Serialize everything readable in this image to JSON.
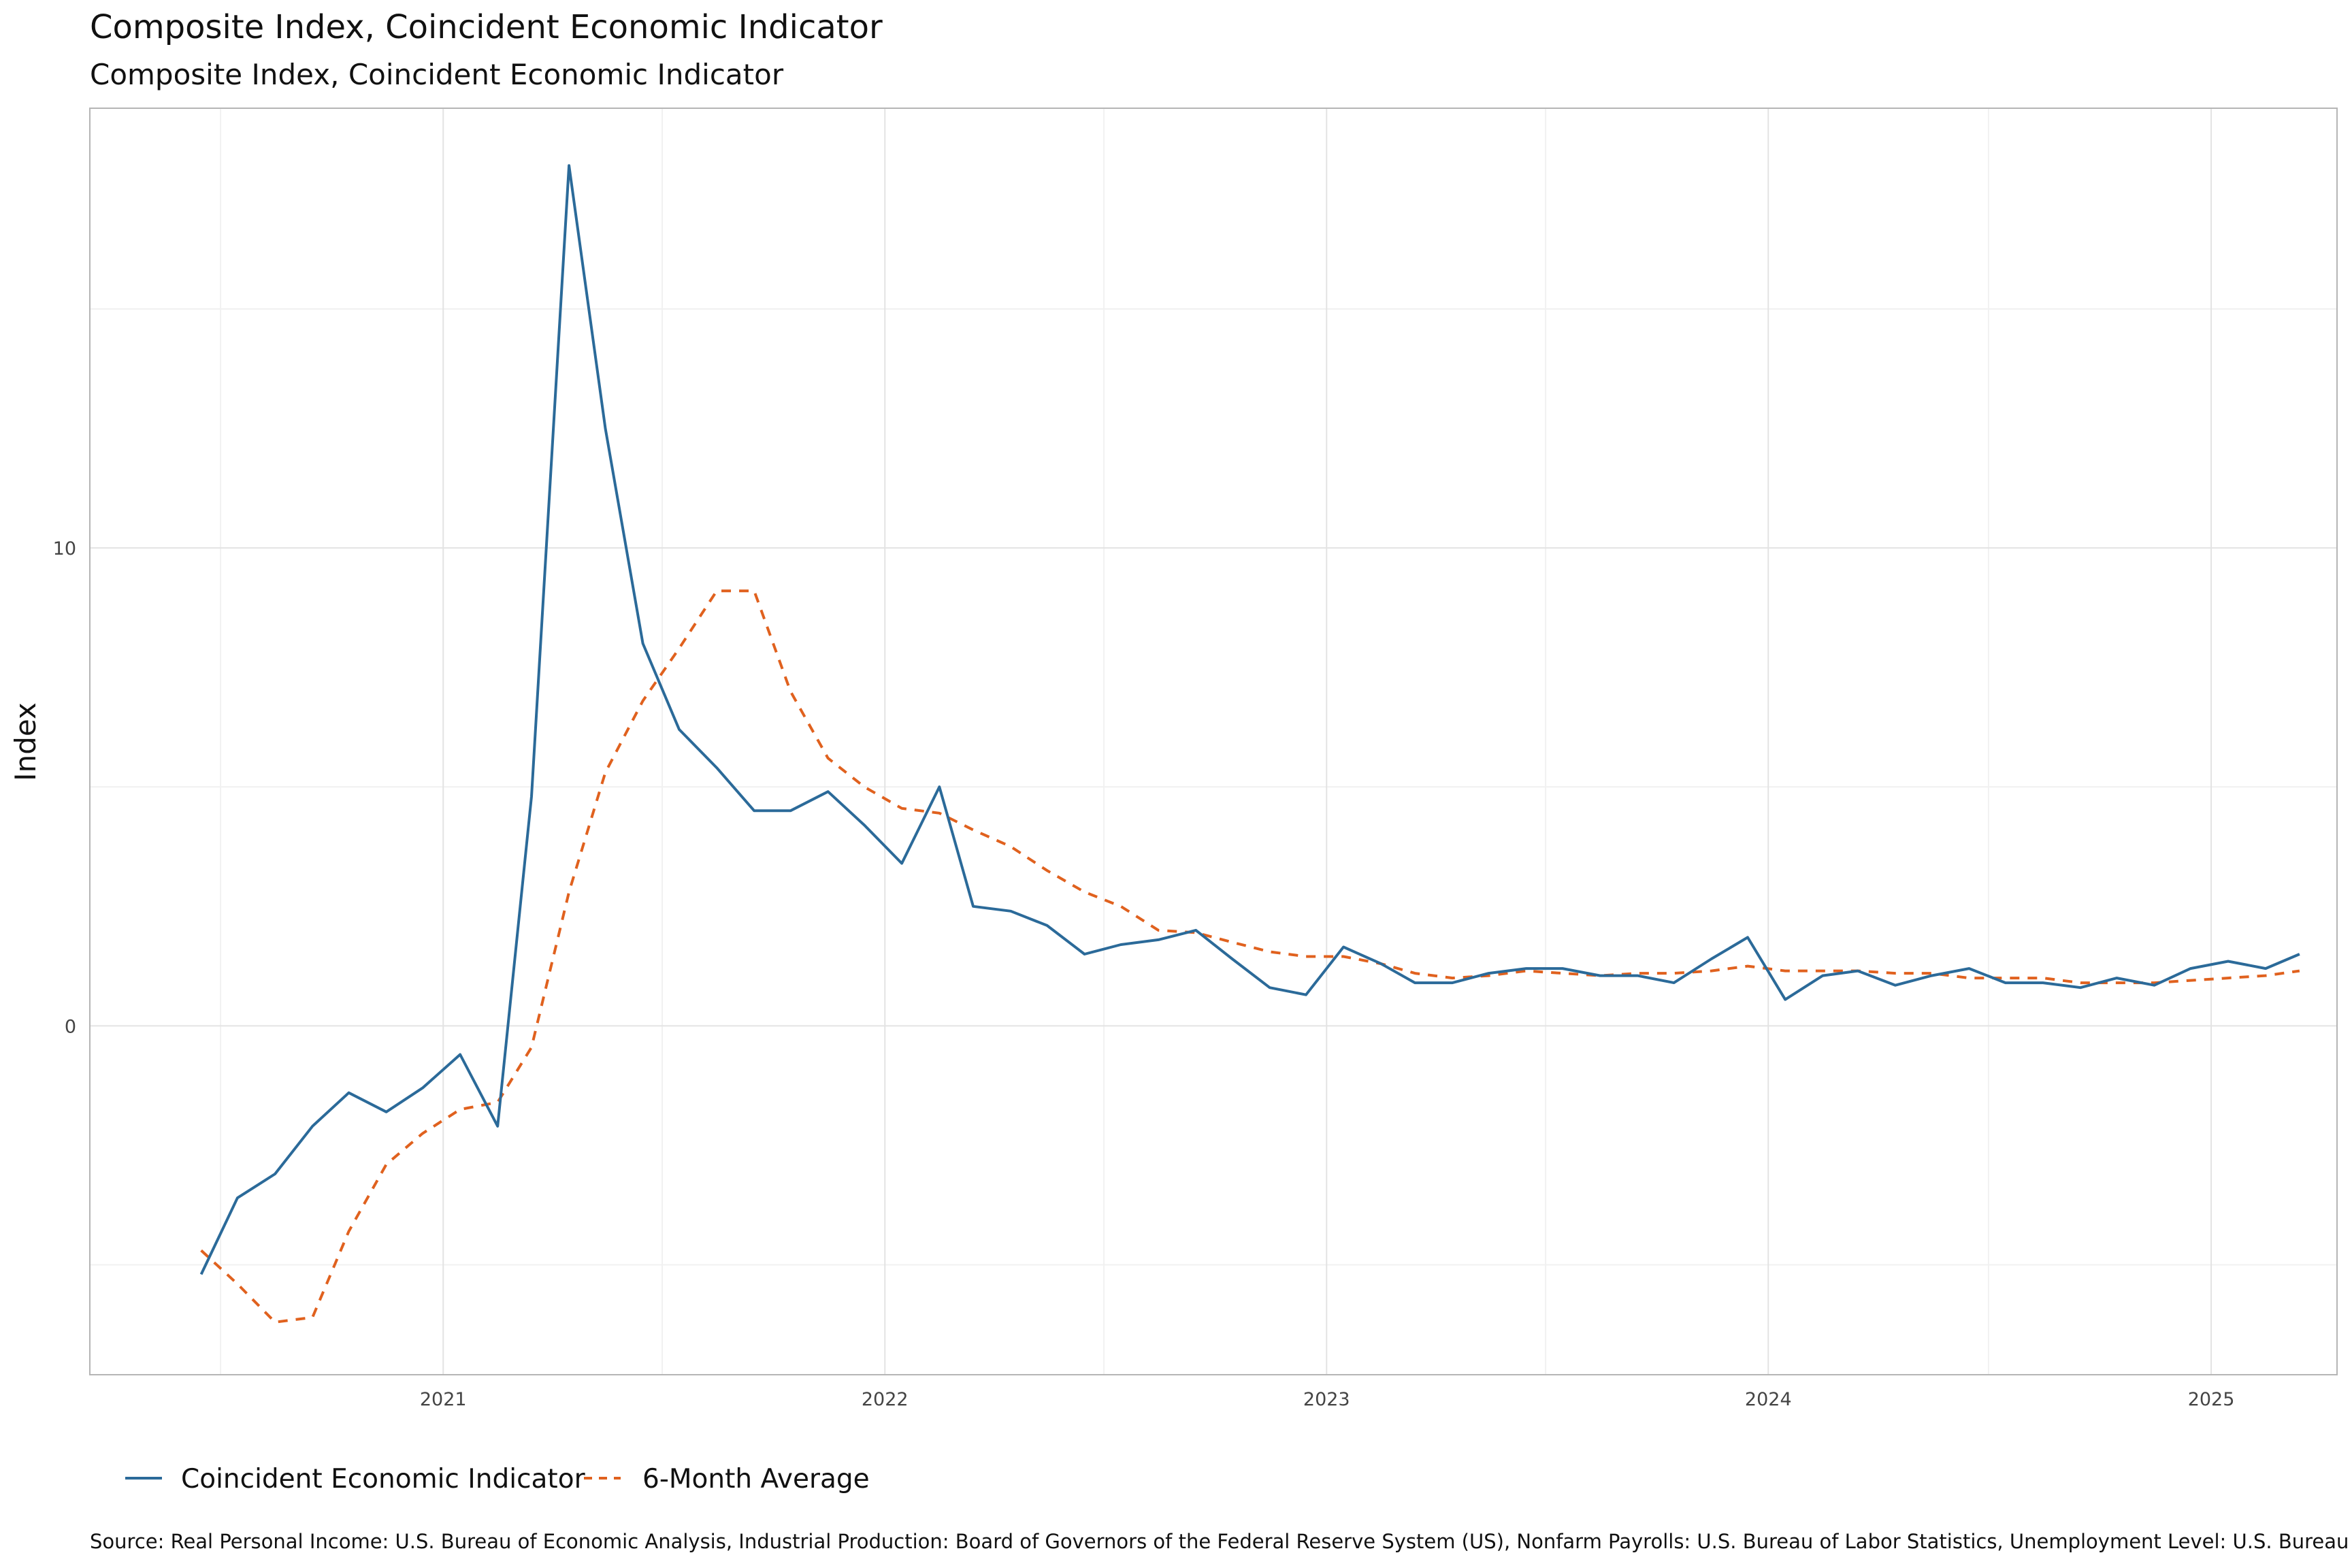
{
  "chart_data": {
    "type": "line",
    "title": "Composite Index, Coincident Economic Indicator",
    "subtitle": "Composite Index, Coincident Economic Indicator",
    "xlabel": "",
    "ylabel": "Index",
    "xlim": [
      "2020-03-15",
      "2025-04-15"
    ],
    "ylim": [
      -7.3,
      19.2
    ],
    "x_ticks": [
      "2021",
      "2022",
      "2023",
      "2024",
      "2025"
    ],
    "y_ticks": [
      "0",
      "10"
    ],
    "grid": true,
    "legend_position": "bottom-left",
    "x": [
      "2020-06",
      "2020-07",
      "2020-08",
      "2020-09",
      "2020-10",
      "2020-11",
      "2020-12",
      "2021-01",
      "2021-02",
      "2021-03",
      "2021-04",
      "2021-05",
      "2021-06",
      "2021-07",
      "2021-08",
      "2021-09",
      "2021-10",
      "2021-11",
      "2021-12",
      "2022-01",
      "2022-02",
      "2022-03",
      "2022-04",
      "2022-05",
      "2022-06",
      "2022-07",
      "2022-08",
      "2022-09",
      "2022-10",
      "2022-11",
      "2022-12",
      "2023-01",
      "2023-02",
      "2023-03",
      "2023-04",
      "2023-05",
      "2023-06",
      "2023-07",
      "2023-08",
      "2023-09",
      "2023-10",
      "2023-11",
      "2023-12",
      "2024-01",
      "2024-02",
      "2024-03",
      "2024-04",
      "2024-05",
      "2024-06",
      "2024-07",
      "2024-08",
      "2024-09",
      "2024-10",
      "2024-11",
      "2024-12",
      "2025-01",
      "2025-02",
      "2025-03"
    ],
    "series": [
      {
        "name": "Coincident Economic Indicator",
        "color": "#2b6a99",
        "style": "solid",
        "values": [
          -5.2,
          -3.6,
          -3.1,
          -2.1,
          -1.4,
          -1.8,
          -1.3,
          -0.6,
          -2.1,
          4.8,
          18.0,
          12.5,
          8.0,
          6.2,
          5.4,
          4.5,
          4.5,
          4.9,
          4.2,
          3.4,
          5.0,
          2.5,
          2.4,
          2.1,
          1.5,
          1.7,
          1.8,
          2.0,
          1.4,
          0.8,
          0.65,
          1.65,
          1.3,
          0.9,
          0.9,
          1.1,
          1.2,
          1.2,
          1.05,
          1.05,
          0.9,
          1.4,
          1.85,
          0.55,
          1.05,
          1.15,
          0.85,
          1.05,
          1.2,
          0.9,
          0.9,
          0.8,
          1.0,
          0.85,
          1.2,
          1.35,
          1.2,
          1.5
        ]
      },
      {
        "name": "6-Month Average",
        "color": "#e0611e",
        "style": "dashed",
        "values": [
          -4.7,
          -5.4,
          -6.2,
          -6.1,
          -4.3,
          -2.9,
          -2.25,
          -1.75,
          -1.6,
          -0.45,
          2.8,
          5.3,
          6.8,
          7.9,
          9.1,
          9.1,
          7.0,
          5.6,
          5.0,
          4.55,
          4.45,
          4.1,
          3.75,
          3.25,
          2.8,
          2.5,
          2.0,
          1.95,
          1.75,
          1.55,
          1.45,
          1.45,
          1.3,
          1.1,
          1.0,
          1.05,
          1.15,
          1.1,
          1.05,
          1.1,
          1.1,
          1.15,
          1.25,
          1.15,
          1.15,
          1.15,
          1.1,
          1.1,
          1.0,
          1.0,
          1.0,
          0.9,
          0.9,
          0.9,
          0.95,
          1.0,
          1.05,
          1.15
        ]
      }
    ],
    "legend": [
      "Coincident Economic Indicator",
      "6-Month Average"
    ],
    "caption": "Source:  Real Personal Income: U.S. Bureau of Economic Analysis, Industrial Production: Board of Governors of the Federal Reserve System (US), Nonfarm Payrolls: U.S. Bureau of Labor Statistics, Unemployment Level:  U.S. Bureau"
  },
  "colors": {
    "grid_major": "#e3e3e3",
    "grid_minor": "#f1f1f1",
    "panel_border": "#b5b5b5"
  }
}
